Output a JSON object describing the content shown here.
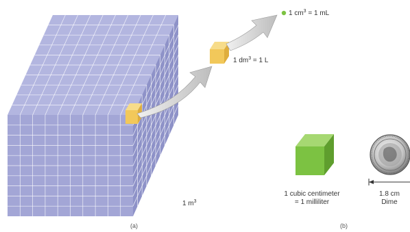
{
  "labels": {
    "m3": "1 m",
    "dm3": "1 dm",
    "dm3_eq": " = 1 L",
    "cm3": "1 cm",
    "cm3_eq": " = 1 mL",
    "superscript": "3"
  },
  "right_panel": {
    "cube_caption_line1": "1 cubic centimeter",
    "cube_caption_line2": "= 1 milliliter",
    "dime_size": "1.8 cm",
    "dime_name": "Dime"
  },
  "captions": {
    "a": "(a)",
    "b": "(b)"
  },
  "colors": {
    "cube_front": "#a3a6d6",
    "cube_top": "#b3b6e0",
    "cube_side": "#8e92c8",
    "grid_line": "#ffffff",
    "small_cube": "#f2c85a",
    "green_cube": "#7cc242",
    "arrow": "#cfcfcf"
  }
}
